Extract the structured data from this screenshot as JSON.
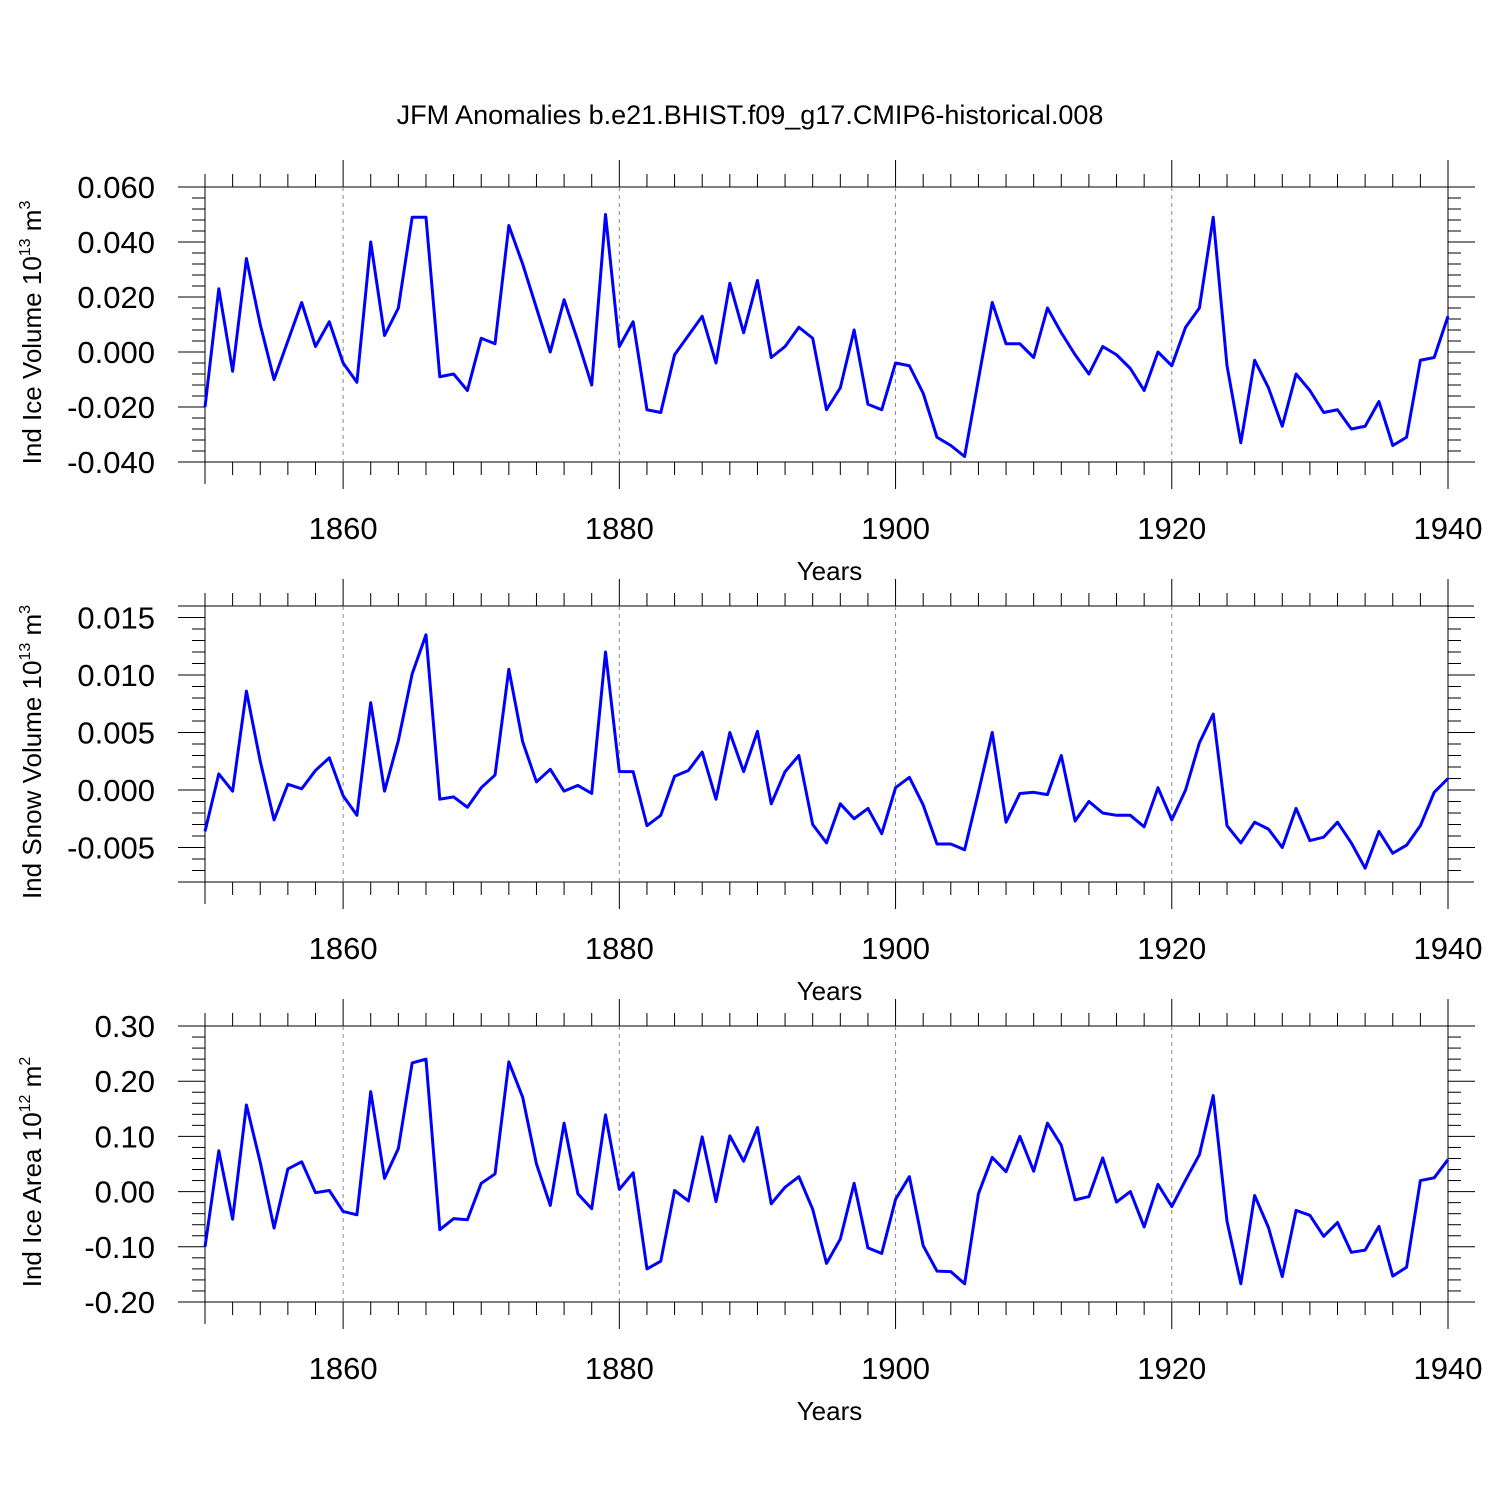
{
  "figure": {
    "title": "JFM Anomalies b.e21.BHIST.f09_g17.CMIP6-historical.008",
    "line_color": "#0000ff",
    "grid_color": "#888888"
  },
  "chart_data": [
    {
      "type": "line",
      "id": "ice-volume",
      "ylabel_main": "Ind Ice Volume 10",
      "ylabel_exp": "13",
      "ylabel_unit": " m",
      "ylabel_unit_exp": "3",
      "xlabel": "Years",
      "xlim": [
        1850,
        1940
      ],
      "ylim": [
        -0.04,
        0.06
      ],
      "grid": "vertical dashed at major x ticks",
      "x_ticks": [
        1860,
        1880,
        1900,
        1920,
        1940
      ],
      "x_tick_labels": [
        "1860",
        "1880",
        "1900",
        "1920",
        "1940"
      ],
      "y_ticks": [
        -0.04,
        -0.02,
        0.0,
        0.02,
        0.04,
        0.06
      ],
      "y_tick_labels": [
        "-0.040",
        "-0.020",
        "0.000",
        "0.020",
        "0.040",
        "0.060"
      ],
      "x": [
        1850,
        1851,
        1852,
        1853,
        1854,
        1855,
        1856,
        1857,
        1858,
        1859,
        1860,
        1861,
        1862,
        1863,
        1864,
        1865,
        1866,
        1867,
        1868,
        1869,
        1870,
        1871,
        1872,
        1873,
        1874,
        1875,
        1876,
        1877,
        1878,
        1879,
        1880,
        1881,
        1882,
        1883,
        1884,
        1885,
        1886,
        1887,
        1888,
        1889,
        1890,
        1891,
        1892,
        1893,
        1894,
        1895,
        1896,
        1897,
        1898,
        1899,
        1900,
        1901,
        1902,
        1903,
        1904,
        1905,
        1906,
        1907,
        1908,
        1909,
        1910,
        1911,
        1912,
        1913,
        1914,
        1915,
        1916,
        1917,
        1918,
        1919,
        1920,
        1921,
        1922,
        1923,
        1924,
        1925,
        1926,
        1927,
        1928,
        1929,
        1930,
        1931,
        1932,
        1933,
        1934,
        1935,
        1936,
        1937,
        1938,
        1939,
        1940
      ],
      "values": [
        -0.02,
        0.023,
        -0.007,
        0.034,
        0.01,
        -0.01,
        0.004,
        0.018,
        0.002,
        0.011,
        -0.004,
        -0.011,
        0.04,
        0.006,
        0.016,
        0.049,
        0.049,
        -0.009,
        -0.008,
        -0.014,
        0.005,
        0.003,
        0.046,
        0.032,
        0.016,
        0.0,
        0.019,
        0.004,
        -0.012,
        0.05,
        0.002,
        0.011,
        -0.021,
        -0.022,
        -0.001,
        0.006,
        0.013,
        -0.004,
        0.025,
        0.007,
        0.026,
        -0.002,
        0.002,
        0.009,
        0.005,
        -0.021,
        -0.013,
        0.008,
        -0.019,
        -0.021,
        -0.004,
        -0.005,
        -0.015,
        -0.031,
        -0.034,
        -0.038,
        -0.01,
        0.018,
        0.003,
        0.003,
        -0.002,
        0.016,
        0.007,
        -0.001,
        -0.008,
        0.002,
        -0.001,
        -0.006,
        -0.014,
        0.0,
        -0.005,
        0.009,
        0.016,
        0.049,
        -0.005,
        -0.033,
        -0.003,
        -0.013,
        -0.027,
        -0.008,
        -0.014,
        -0.022,
        -0.021,
        -0.028,
        -0.027,
        -0.018,
        -0.034,
        -0.031,
        -0.003,
        -0.002,
        0.013
      ]
    },
    {
      "type": "line",
      "id": "snow-volume",
      "ylabel_main": "Ind Snow Volume 10",
      "ylabel_exp": "13",
      "ylabel_unit": " m",
      "ylabel_unit_exp": "3",
      "xlabel": "Years",
      "xlim": [
        1850,
        1940
      ],
      "ylim": [
        -0.008,
        0.016
      ],
      "grid": "vertical dashed at major x ticks",
      "x_ticks": [
        1860,
        1880,
        1900,
        1920,
        1940
      ],
      "x_tick_labels": [
        "1860",
        "1880",
        "1900",
        "1920",
        "1940"
      ],
      "y_ticks": [
        -0.005,
        0.0,
        0.005,
        0.01,
        0.015
      ],
      "y_tick_labels": [
        "-0.005",
        "0.000",
        "0.005",
        "0.010",
        "0.015"
      ],
      "x": [
        1850,
        1851,
        1852,
        1853,
        1854,
        1855,
        1856,
        1857,
        1858,
        1859,
        1860,
        1861,
        1862,
        1863,
        1864,
        1865,
        1866,
        1867,
        1868,
        1869,
        1870,
        1871,
        1872,
        1873,
        1874,
        1875,
        1876,
        1877,
        1878,
        1879,
        1880,
        1881,
        1882,
        1883,
        1884,
        1885,
        1886,
        1887,
        1888,
        1889,
        1890,
        1891,
        1892,
        1893,
        1894,
        1895,
        1896,
        1897,
        1898,
        1899,
        1900,
        1901,
        1902,
        1903,
        1904,
        1905,
        1906,
        1907,
        1908,
        1909,
        1910,
        1911,
        1912,
        1913,
        1914,
        1915,
        1916,
        1917,
        1918,
        1919,
        1920,
        1921,
        1922,
        1923,
        1924,
        1925,
        1926,
        1927,
        1928,
        1929,
        1930,
        1931,
        1932,
        1933,
        1934,
        1935,
        1936,
        1937,
        1938,
        1939,
        1940
      ],
      "values": [
        -0.0036,
        0.0014,
        -0.0001,
        0.0086,
        0.0025,
        -0.0026,
        0.0005,
        0.0001,
        0.0017,
        0.0028,
        -0.0005,
        -0.0022,
        0.0076,
        -0.0001,
        0.0043,
        0.0101,
        0.0135,
        -0.0008,
        -0.0006,
        -0.0015,
        0.0002,
        0.0013,
        0.0105,
        0.0042,
        0.0007,
        0.0018,
        -0.0001,
        0.0004,
        -0.0003,
        0.012,
        0.0016,
        0.0016,
        -0.0031,
        -0.0022,
        0.0012,
        0.0017,
        0.0033,
        -0.0008,
        0.005,
        0.0016,
        0.0051,
        -0.0012,
        0.0016,
        0.003,
        -0.003,
        -0.0046,
        -0.0012,
        -0.0025,
        -0.0016,
        -0.0038,
        0.0002,
        0.0011,
        -0.0013,
        -0.0047,
        -0.0047,
        -0.0052,
        -0.0002,
        0.005,
        -0.0028,
        -0.0003,
        -0.0002,
        -0.0004,
        0.003,
        -0.0027,
        -0.001,
        -0.002,
        -0.0022,
        -0.0022,
        -0.0032,
        0.0002,
        -0.0026,
        0.0,
        0.0041,
        0.0066,
        -0.0031,
        -0.0046,
        -0.0028,
        -0.0034,
        -0.005,
        -0.0016,
        -0.0044,
        -0.0041,
        -0.0028,
        -0.0046,
        -0.0068,
        -0.0036,
        -0.0055,
        -0.0048,
        -0.0031,
        -0.0002,
        0.001
      ]
    },
    {
      "type": "line",
      "id": "ice-area",
      "ylabel_main": "Ind Ice Area 10",
      "ylabel_exp": "12",
      "ylabel_unit": " m",
      "ylabel_unit_exp": "2",
      "xlabel": "Years",
      "xlim": [
        1850,
        1940
      ],
      "ylim": [
        -0.2,
        0.3
      ],
      "grid": "vertical dashed at major x ticks",
      "x_ticks": [
        1860,
        1880,
        1900,
        1920,
        1940
      ],
      "x_tick_labels": [
        "1860",
        "1880",
        "1900",
        "1920",
        "1940"
      ],
      "y_ticks": [
        -0.2,
        -0.1,
        0.0,
        0.1,
        0.2,
        0.3
      ],
      "y_tick_labels": [
        "-0.20",
        "-0.10",
        "0.00",
        "0.10",
        "0.20",
        "0.30"
      ],
      "x": [
        1850,
        1851,
        1852,
        1853,
        1854,
        1855,
        1856,
        1857,
        1858,
        1859,
        1860,
        1861,
        1862,
        1863,
        1864,
        1865,
        1866,
        1867,
        1868,
        1869,
        1870,
        1871,
        1872,
        1873,
        1874,
        1875,
        1876,
        1877,
        1878,
        1879,
        1880,
        1881,
        1882,
        1883,
        1884,
        1885,
        1886,
        1887,
        1888,
        1889,
        1890,
        1891,
        1892,
        1893,
        1894,
        1895,
        1896,
        1897,
        1898,
        1899,
        1900,
        1901,
        1902,
        1903,
        1904,
        1905,
        1906,
        1907,
        1908,
        1909,
        1910,
        1911,
        1912,
        1913,
        1914,
        1915,
        1916,
        1917,
        1918,
        1919,
        1920,
        1921,
        1922,
        1923,
        1924,
        1925,
        1926,
        1927,
        1928,
        1929,
        1930,
        1931,
        1932,
        1933,
        1934,
        1935,
        1936,
        1937,
        1938,
        1939,
        1940
      ],
      "values": [
        -0.1,
        0.074,
        -0.05,
        0.157,
        0.053,
        -0.066,
        0.041,
        0.054,
        -0.002,
        0.002,
        -0.036,
        -0.042,
        0.181,
        0.024,
        0.078,
        0.233,
        0.24,
        -0.069,
        -0.049,
        -0.051,
        0.015,
        0.032,
        0.235,
        0.171,
        0.05,
        -0.025,
        0.124,
        -0.004,
        -0.031,
        0.139,
        0.004,
        0.034,
        -0.14,
        -0.126,
        0.002,
        -0.017,
        0.099,
        -0.018,
        0.101,
        0.055,
        0.116,
        -0.022,
        0.008,
        0.027,
        -0.032,
        -0.13,
        -0.086,
        0.015,
        -0.102,
        -0.112,
        -0.014,
        0.027,
        -0.098,
        -0.144,
        -0.145,
        -0.167,
        -0.004,
        0.062,
        0.036,
        0.1,
        0.037,
        0.124,
        0.084,
        -0.015,
        -0.009,
        0.061,
        -0.019,
        0.0,
        -0.064,
        0.013,
        -0.027,
        0.021,
        0.067,
        0.174,
        -0.054,
        -0.167,
        -0.007,
        -0.065,
        -0.154,
        -0.034,
        -0.043,
        -0.081,
        -0.056,
        -0.11,
        -0.106,
        -0.063,
        -0.153,
        -0.137,
        0.02,
        0.025,
        0.058
      ]
    }
  ]
}
